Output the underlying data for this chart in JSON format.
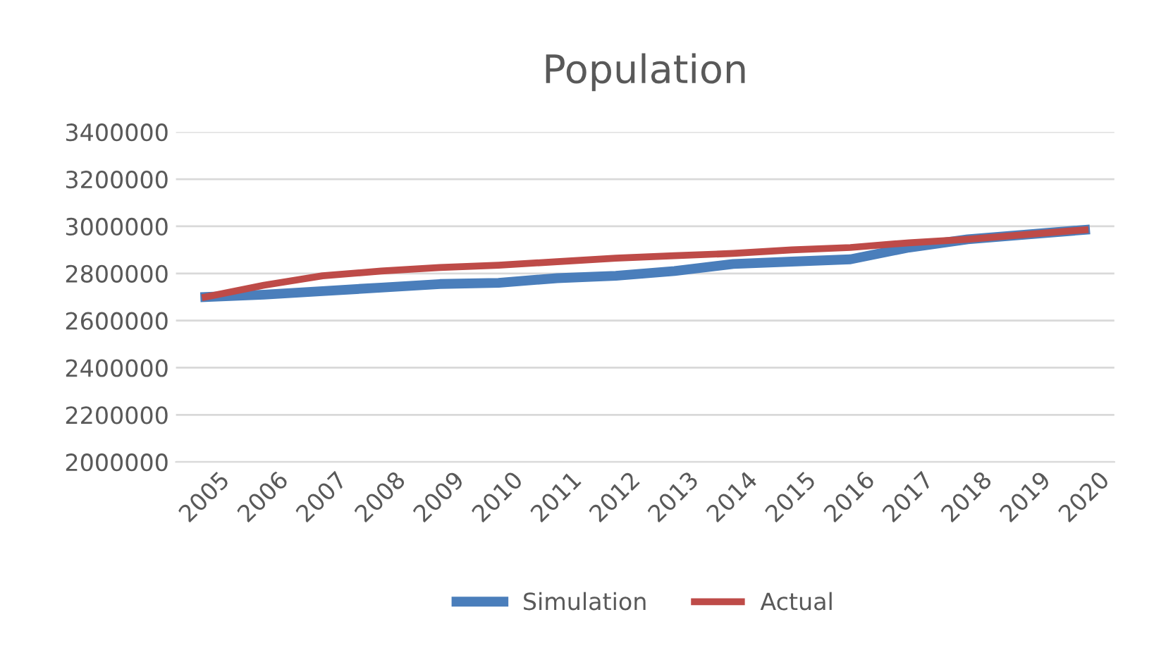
{
  "chart_data": {
    "type": "line",
    "title": "Population",
    "categories": [
      "2005",
      "2006",
      "2007",
      "2008",
      "2009",
      "2010",
      "2011",
      "2012",
      "2013",
      "2014",
      "2015",
      "2016",
      "2017",
      "2018",
      "2019",
      "2020"
    ],
    "series": [
      {
        "name": "Simulation",
        "color": "#4a7ebb",
        "values": [
          2700000,
          2710000,
          2725000,
          2740000,
          2755000,
          2760000,
          2780000,
          2790000,
          2810000,
          2840000,
          2850000,
          2860000,
          2910000,
          2945000,
          2965000,
          2985000
        ]
      },
      {
        "name": "Actual",
        "color": "#be4b48",
        "values": [
          2700000,
          2750000,
          2790000,
          2810000,
          2825000,
          2835000,
          2850000,
          2865000,
          2875000,
          2885000,
          2900000,
          2910000,
          2930000,
          2945000,
          2965000,
          2985000
        ]
      }
    ],
    "ylim": [
      2000000,
      3400000
    ],
    "yticks": [
      2000000,
      2200000,
      2400000,
      2600000,
      2800000,
      3000000,
      3200000,
      3400000
    ],
    "grid": "y",
    "legend": "bottom",
    "marker": "none",
    "line_style": "solid"
  }
}
